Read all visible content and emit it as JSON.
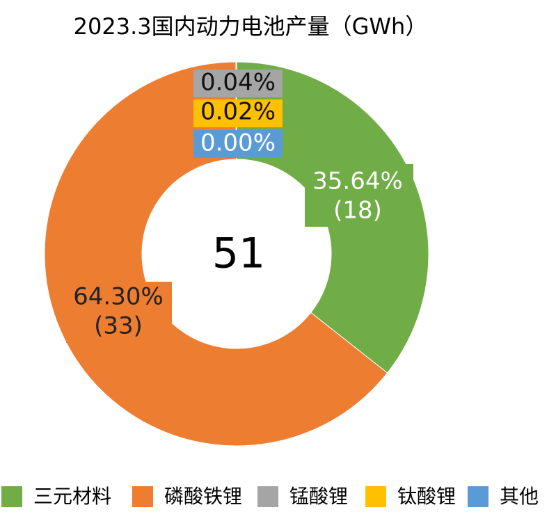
{
  "chart_data": {
    "type": "donut",
    "title": "2023.3国内动力电池产量（GWh）",
    "total": 51,
    "categories": [
      "三元材料",
      "磷酸铁锂",
      "锰酸锂",
      "钛酸锂",
      "其他"
    ],
    "values": [
      35.64,
      64.3,
      0.04,
      0.02,
      0.0
    ],
    "value_labels": [
      "35.64%",
      "64.30%",
      "0.04%",
      "0.02%",
      "0.00%"
    ],
    "amounts": [
      18,
      33,
      null,
      null,
      null
    ],
    "amount_labels": [
      "(18)",
      "(33)",
      null,
      null,
      null
    ],
    "colors": [
      "#70ad47",
      "#ed7d31",
      "#a5a5a5",
      "#ffc000",
      "#5b9bd5"
    ],
    "legend": "bottom"
  }
}
